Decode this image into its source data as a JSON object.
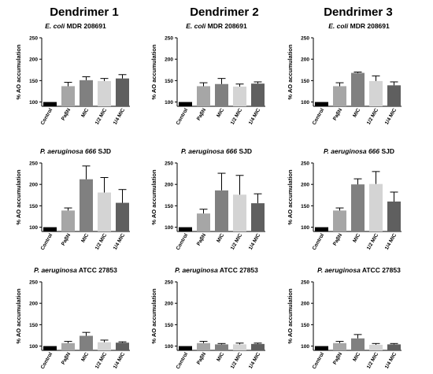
{
  "column_headers": [
    "Dendrimer 1",
    "Dendrimer 2",
    "Dendrimer 3"
  ],
  "row_titles": [
    {
      "species": "E. coli",
      "strain": " MDR 208691"
    },
    {
      "species": "P. aeruginosa 666",
      "strain": " SJD"
    },
    {
      "species": "P. aeruginosa",
      "strain": " ATCC 27853"
    }
  ],
  "ylabel": "% AO accumulation",
  "colors": {
    "Control": "#000000",
    "PaβN": "#a6a6a6",
    "MIC": "#808080",
    "1/2 MIC": "#d4d4d4",
    "1/4 MIC": "#5f5f5f"
  },
  "chart_data": [
    {
      "type": "bar",
      "title": "E. coli MDR 208691",
      "column": "Dendrimer 1",
      "categories": [
        "Control",
        "PaβN",
        "MIC",
        "1/2 MIC",
        "1/4 MIC"
      ],
      "values": [
        100,
        137,
        151,
        149,
        155
      ],
      "error": [
        0,
        9,
        8,
        6,
        9
      ],
      "ylim": [
        90,
        250
      ],
      "yticks": [
        100,
        150,
        200,
        250
      ],
      "ylabel": "% AO accumulation"
    },
    {
      "type": "bar",
      "title": "E. coli MDR 208691",
      "column": "Dendrimer 2",
      "categories": [
        "Control",
        "PaβN",
        "MIC",
        "1/2 MIC",
        "1/4 MIC"
      ],
      "values": [
        100,
        137,
        142,
        136,
        143
      ],
      "error": [
        0,
        8,
        13,
        6,
        4
      ],
      "ylim": [
        90,
        250
      ],
      "yticks": [
        100,
        150,
        200,
        250
      ],
      "ylabel": "% AO accumulation"
    },
    {
      "type": "bar",
      "title": "E. coli MDR 208691",
      "column": "Dendrimer 3",
      "categories": [
        "Control",
        "PaβN",
        "MIC",
        "1/2 MIC",
        "1/4 MIC"
      ],
      "values": [
        100,
        137,
        168,
        149,
        139
      ],
      "error": [
        0,
        8,
        2,
        12,
        8
      ],
      "ylim": [
        90,
        250
      ],
      "yticks": [
        100,
        150,
        200,
        250
      ],
      "ylabel": "% AO accumulation"
    },
    {
      "type": "bar",
      "title": "P. aeruginosa 666 SJD",
      "column": "Dendrimer 1",
      "categories": [
        "Control",
        "PaβN",
        "MIC",
        "1/2 MIC",
        "1/4 MIC"
      ],
      "values": [
        100,
        139,
        212,
        181,
        157
      ],
      "error": [
        0,
        6,
        31,
        35,
        31
      ],
      "ylim": [
        90,
        250
      ],
      "yticks": [
        100,
        150,
        200,
        250
      ],
      "ylabel": "% AO accumulation"
    },
    {
      "type": "bar",
      "title": "P. aeruginosa 666 SJD",
      "column": "Dendrimer 2",
      "categories": [
        "Control",
        "PaβN",
        "MIC",
        "1/2 MIC",
        "1/4 MIC"
      ],
      "values": [
        100,
        132,
        186,
        176,
        156
      ],
      "error": [
        0,
        10,
        40,
        45,
        22
      ],
      "ylim": [
        90,
        250
      ],
      "yticks": [
        100,
        150,
        200,
        250
      ],
      "ylabel": "% AO accumulation"
    },
    {
      "type": "bar",
      "title": "P. aeruginosa 666 SJD",
      "column": "Dendrimer 3",
      "categories": [
        "Control",
        "PaβN",
        "MIC",
        "1/2 MIC",
        "1/4 MIC"
      ],
      "values": [
        100,
        139,
        200,
        201,
        160
      ],
      "error": [
        0,
        6,
        13,
        29,
        22
      ],
      "ylim": [
        90,
        250
      ],
      "yticks": [
        100,
        150,
        200,
        250
      ],
      "ylabel": "% AO accumulation"
    },
    {
      "type": "bar",
      "title": "P. aeruginosa ATCC 27853",
      "column": "Dendrimer 1",
      "categories": [
        "Control",
        "PaβN",
        "MIC",
        "1/2 MIC",
        "1/4 MIC"
      ],
      "values": [
        100,
        107,
        124,
        109,
        108
      ],
      "error": [
        0,
        4,
        8,
        5,
        2
      ],
      "ylim": [
        90,
        250
      ],
      "yticks": [
        100,
        150,
        200,
        250
      ],
      "ylabel": "% AO accumulation"
    },
    {
      "type": "bar",
      "title": "P. aeruginosa ATCC 27853",
      "column": "Dendrimer 2",
      "categories": [
        "Control",
        "PaβN",
        "MIC",
        "1/2 MIC",
        "1/4 MIC"
      ],
      "values": [
        100,
        107,
        104,
        104,
        105
      ],
      "error": [
        0,
        4,
        2,
        3,
        2
      ],
      "ylim": [
        90,
        250
      ],
      "yticks": [
        100,
        150,
        200,
        250
      ],
      "ylabel": "% AO accumulation"
    },
    {
      "type": "bar",
      "title": "P. aeruginosa ATCC 27853",
      "column": "Dendrimer 3",
      "categories": [
        "Control",
        "PaβN",
        "MIC",
        "1/2 MIC",
        "1/4 MIC"
      ],
      "values": [
        100,
        107,
        118,
        103,
        104
      ],
      "error": [
        0,
        4,
        9,
        3,
        2
      ],
      "ylim": [
        90,
        250
      ],
      "yticks": [
        100,
        150,
        200,
        250
      ],
      "ylabel": "% AO accumulation"
    }
  ]
}
